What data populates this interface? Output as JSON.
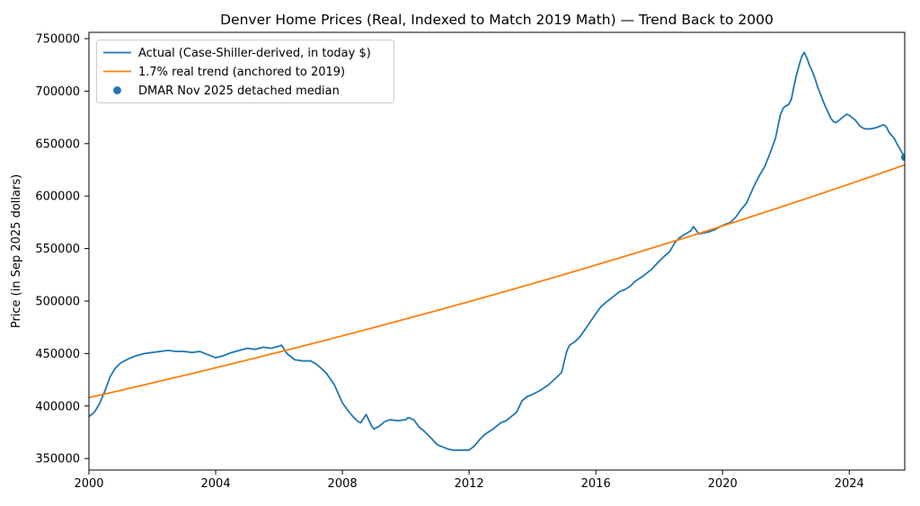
{
  "figure": {
    "background": "#ffffff"
  },
  "chart_data": {
    "type": "line",
    "title": "Denver Home Prices (Real, Indexed to Match 2019 Math) — Trend Back to 2000",
    "xlabel": "",
    "ylabel": "Price (in Sep 2025 dollars)",
    "xlim": [
      2000,
      2025.75
    ],
    "ylim": [
      339000,
      756000
    ],
    "xticks": [
      2000,
      2004,
      2008,
      2012,
      2016,
      2020,
      2024
    ],
    "yticks": [
      350000,
      400000,
      450000,
      500000,
      550000,
      600000,
      650000,
      700000,
      750000
    ],
    "grid": false,
    "legend_position": "upper left",
    "series": [
      {
        "key": "actual",
        "name": "Actual (Case-Shiller-derived, in today $)",
        "type": "line",
        "color": "#1f77b4",
        "x": [
          2000.0,
          2000.17,
          2000.33,
          2000.5,
          2000.67,
          2000.83,
          2001.0,
          2001.25,
          2001.5,
          2001.75,
          2002.0,
          2002.25,
          2002.5,
          2002.75,
          2003.0,
          2003.25,
          2003.5,
          2003.75,
          2004.0,
          2004.25,
          2004.5,
          2004.75,
          2005.0,
          2005.25,
          2005.5,
          2005.75,
          2006.0,
          2006.08,
          2006.25,
          2006.5,
          2006.75,
          2007.0,
          2007.17,
          2007.33,
          2007.5,
          2007.75,
          2008.0,
          2008.17,
          2008.33,
          2008.5,
          2008.58,
          2008.75,
          2008.92,
          2009.0,
          2009.17,
          2009.33,
          2009.5,
          2009.75,
          2010.0,
          2010.08,
          2010.25,
          2010.42,
          2010.58,
          2010.75,
          2011.0,
          2011.17,
          2011.33,
          2011.5,
          2011.75,
          2012.0,
          2012.17,
          2012.33,
          2012.5,
          2012.75,
          2013.0,
          2013.17,
          2013.33,
          2013.5,
          2013.67,
          2013.83,
          2014.0,
          2014.25,
          2014.5,
          2014.75,
          2014.92,
          2015.08,
          2015.17,
          2015.33,
          2015.5,
          2015.75,
          2016.0,
          2016.17,
          2016.33,
          2016.5,
          2016.75,
          2016.92,
          2017.08,
          2017.25,
          2017.5,
          2017.75,
          2018.0,
          2018.17,
          2018.33,
          2018.5,
          2018.67,
          2018.83,
          2019.0,
          2019.08,
          2019.25,
          2019.42,
          2019.58,
          2019.75,
          2020.0,
          2020.25,
          2020.42,
          2020.58,
          2020.75,
          2021.0,
          2021.17,
          2021.33,
          2021.5,
          2021.67,
          2021.83,
          2021.92,
          2022.0,
          2022.08,
          2022.17,
          2022.25,
          2022.33,
          2022.42,
          2022.5,
          2022.58,
          2022.67,
          2022.75,
          2022.83,
          2022.92,
          2023.0,
          2023.08,
          2023.17,
          2023.25,
          2023.33,
          2023.42,
          2023.5,
          2023.58,
          2023.67,
          2023.83,
          2023.92,
          2024.0,
          2024.08,
          2024.17,
          2024.25,
          2024.33,
          2024.42,
          2024.5,
          2024.67,
          2024.83,
          2024.92,
          2025.0,
          2025.08,
          2025.17,
          2025.25,
          2025.33,
          2025.42,
          2025.5,
          2025.58,
          2025.67,
          2025.75
        ],
        "y": [
          390000,
          394000,
          402000,
          414000,
          428000,
          436000,
          441000,
          445000,
          448000,
          450000,
          451000,
          452000,
          453000,
          452000,
          452000,
          451000,
          452000,
          449000,
          446000,
          448000,
          451000,
          453000,
          455000,
          454000,
          456000,
          455000,
          457000,
          458000,
          450000,
          444000,
          443000,
          443000,
          440000,
          436000,
          431000,
          420000,
          403000,
          396000,
          390000,
          385000,
          384000,
          392000,
          381000,
          378000,
          381000,
          385000,
          387000,
          386000,
          387000,
          389000,
          387000,
          380000,
          376000,
          371000,
          363000,
          361000,
          359000,
          358000,
          358000,
          358000,
          362000,
          368000,
          373000,
          378000,
          384000,
          386000,
          390000,
          394000,
          405000,
          409000,
          411000,
          415000,
          420000,
          427000,
          432000,
          452000,
          458000,
          461000,
          466000,
          477000,
          488000,
          495000,
          499000,
          503000,
          509000,
          511000,
          514000,
          519000,
          524000,
          530000,
          538000,
          543000,
          547000,
          556000,
          561000,
          564000,
          567000,
          571000,
          564000,
          565000,
          566000,
          568000,
          572000,
          575000,
          580000,
          587000,
          593000,
          610000,
          620000,
          628000,
          641000,
          655000,
          678000,
          684000,
          686000,
          687000,
          692000,
          704000,
          715000,
          725000,
          733000,
          737000,
          731000,
          724000,
          719000,
          712000,
          704000,
          698000,
          691000,
          685000,
          680000,
          674000,
          671000,
          670000,
          672000,
          676000,
          678000,
          677000,
          675000,
          673000,
          670000,
          667000,
          665000,
          664000,
          664000,
          665000,
          666000,
          667000,
          668000,
          666000,
          661000,
          658000,
          655000,
          650000,
          646000,
          641000,
          638000
        ]
      },
      {
        "key": "trend",
        "name": "1.7% real trend (anchored to 2019)",
        "type": "line",
        "color": "#ff7f0e",
        "trend": {
          "start_year": 2000,
          "start_value": 408000,
          "annual_rate": 0.017,
          "anchor_year": 2019,
          "end_year": 2025.75
        }
      },
      {
        "key": "dmar",
        "name": "DMAR Nov 2025 detached median",
        "type": "scatter",
        "color": "#1f77b4",
        "x": [
          2025.75
        ],
        "y": [
          637000
        ]
      }
    ]
  }
}
